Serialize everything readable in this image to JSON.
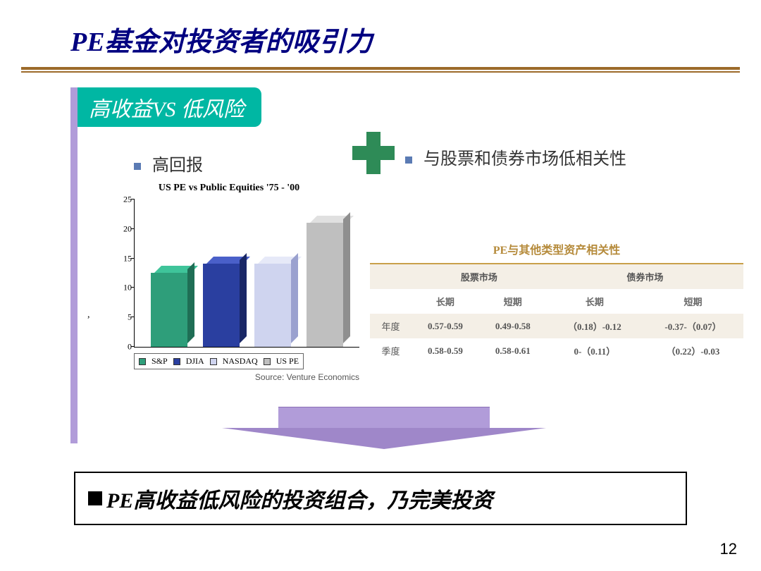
{
  "title": "PE基金对投资者的吸引力",
  "banner": "高收益VS 低风险",
  "bullets": {
    "left": "高回报",
    "right": "与股票和债券市场低相关性"
  },
  "chart": {
    "title": "US PE vs Public Equities '75 - '00",
    "type": "bar",
    "ylim": [
      0,
      25
    ],
    "ytick_step": 5,
    "yticks": [
      0,
      5,
      10,
      15,
      20,
      25
    ],
    "series": [
      {
        "label": "S&P",
        "value": 12.5,
        "front": "#2e9e7a",
        "top": "#3fc49a",
        "side": "#1f6e55"
      },
      {
        "label": "DJIA",
        "value": 14,
        "front": "#2a3fa0",
        "top": "#4a60c9",
        "side": "#192766"
      },
      {
        "label": "NASDAQ",
        "value": 14,
        "front": "#cfd4ef",
        "top": "#e6e9f8",
        "side": "#9aa1cf"
      },
      {
        "label": "US PE",
        "value": 21,
        "front": "#bfbfbf",
        "top": "#e0e0e0",
        "side": "#8f8f8f"
      }
    ],
    "source": "Source: Venture Economics",
    "axis_punct": ","
  },
  "table": {
    "title": "PE与其他类型资产相关性",
    "group_headers": [
      "股票市场",
      "债券市场"
    ],
    "sub_headers": [
      "长期",
      "短期",
      "长期",
      "短期"
    ],
    "rows": [
      {
        "label": "年度",
        "cells": [
          "0.57-0.59",
          "0.49-0.58",
          "（0.18）-0.12",
          "-0.37-（0.07）"
        ]
      },
      {
        "label": "季度",
        "cells": [
          "0.58-0.59",
          "0.58-0.61",
          "0-（0.11）",
          "（0.22）-0.03"
        ]
      }
    ],
    "title_color": "#b58a3a",
    "stripe_color": "#f4efe6"
  },
  "conclusion": "PE高收益低风险的投资组合，乃完美投资",
  "page_number": "12",
  "colors": {
    "title": "#000080",
    "rule": "#9c6a2a",
    "accent": "#b19cd9",
    "banner_bg": "#00b7a3",
    "plus": "#2e8b57"
  }
}
